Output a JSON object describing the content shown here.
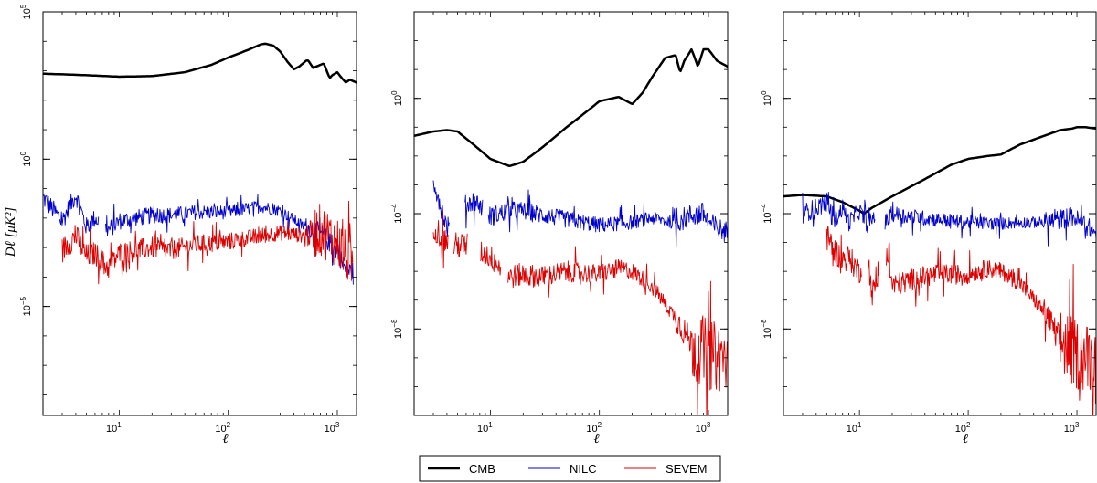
{
  "chart_data": [
    {
      "type": "line",
      "xscale": "log",
      "yscale": "log",
      "xlabel": "ℓ",
      "ylabel": "Dℓ [μK²]",
      "xlim": [
        2,
        1500
      ],
      "ylim_exp": [
        -8.7,
        5
      ],
      "yticks": [
        {
          "exp": 5,
          "label": "10",
          "sup": "5"
        },
        {
          "exp": 0,
          "label": "10",
          "sup": "0"
        },
        {
          "exp": -5,
          "label": "10",
          "sup": "−5"
        }
      ],
      "xticks": [
        {
          "exp": 1,
          "label": "10",
          "sup": "1"
        },
        {
          "exp": 2,
          "label": "10",
          "sup": "2"
        },
        {
          "exp": 3,
          "label": "10",
          "sup": "3"
        }
      ],
      "series": [
        {
          "name": "CMB",
          "color": "#000000",
          "width": 2.5,
          "noise": 0,
          "x": [
            2,
            3,
            5,
            10,
            20,
            40,
            70,
            100,
            150,
            200,
            220,
            260,
            300,
            350,
            400,
            450,
            520,
            540,
            600,
            700,
            750,
            800,
            850,
            900,
            1000,
            1100,
            1200,
            1300,
            1500
          ],
          "y": [
            2.9,
            2.88,
            2.85,
            2.8,
            2.82,
            2.95,
            3.2,
            3.45,
            3.7,
            3.9,
            3.92,
            3.85,
            3.65,
            3.3,
            3.05,
            3.15,
            3.35,
            3.35,
            3.1,
            3.2,
            3.25,
            3.0,
            2.75,
            2.85,
            2.95,
            2.75,
            2.6,
            2.7,
            2.6
          ]
        },
        {
          "name": "NILC",
          "color": "#0000cc",
          "width": 0.9,
          "noise": 0.35,
          "gaps": [
            [
              6.5,
              7.5
            ]
          ],
          "x": [
            2,
            3,
            4,
            5,
            6,
            8,
            10,
            20,
            30,
            50,
            100,
            200,
            300,
            500,
            700,
            1000,
            1200,
            1400
          ],
          "y": [
            -1.3,
            -2.1,
            -1.2,
            -2.3,
            -2.0,
            -2.4,
            -2.1,
            -1.9,
            -1.9,
            -1.8,
            -1.8,
            -1.6,
            -1.75,
            -2.3,
            -2.5,
            -3.1,
            -3.8,
            -3.8
          ]
        },
        {
          "name": "SEVEM",
          "color": "#dd0000",
          "width": 0.9,
          "noise": 0.45,
          "noiseBoost": [
            [
              600,
              1400,
              2.0
            ]
          ],
          "x": [
            3,
            4,
            5,
            6,
            8,
            10,
            20,
            30,
            50,
            100,
            200,
            300,
            500,
            700,
            1000,
            1200,
            1400
          ],
          "y": [
            -3.1,
            -2.6,
            -3.3,
            -3.2,
            -3.7,
            -3.2,
            -3.0,
            -3.1,
            -2.9,
            -2.8,
            -2.6,
            -2.5,
            -2.6,
            -2.4,
            -2.8,
            -3.3,
            -3.6
          ]
        }
      ]
    },
    {
      "type": "line",
      "xscale": "log",
      "yscale": "log",
      "xlabel": "ℓ",
      "ylabel": "",
      "xlim": [
        2,
        1500
      ],
      "ylim_exp": [
        -11,
        3
      ],
      "yticks": [
        {
          "exp": 0,
          "label": "10",
          "sup": "0"
        },
        {
          "exp": -4,
          "label": "10",
          "sup": "−4"
        },
        {
          "exp": -8,
          "label": "10",
          "sup": "−8"
        }
      ],
      "xticks": [
        {
          "exp": 1,
          "label": "10",
          "sup": "1"
        },
        {
          "exp": 2,
          "label": "10",
          "sup": "2"
        },
        {
          "exp": 3,
          "label": "10",
          "sup": "3"
        }
      ],
      "series": [
        {
          "name": "CMB",
          "color": "#000000",
          "width": 2.5,
          "noise": 0,
          "x": [
            2,
            3,
            4,
            5,
            7,
            10,
            15,
            20,
            30,
            50,
            80,
            100,
            150,
            200,
            250,
            300,
            400,
            500,
            550,
            600,
            700,
            800,
            900,
            1000,
            1200,
            1500
          ],
          "y": [
            -1.3,
            -1.15,
            -1.1,
            -1.15,
            -1.6,
            -2.1,
            -2.35,
            -2.2,
            -1.7,
            -1.0,
            -0.4,
            -0.1,
            0.05,
            -0.2,
            0.2,
            0.7,
            1.4,
            1.5,
            0.9,
            1.3,
            1.7,
            1.1,
            1.7,
            1.7,
            1.3,
            1.1
          ]
        },
        {
          "name": "NILC",
          "color": "#0000cc",
          "width": 0.9,
          "noise": 0.4,
          "gaps": [
            [
              4.2,
              5.8
            ],
            [
              8.5,
              9.5
            ]
          ],
          "x": [
            3,
            4,
            6,
            7,
            8,
            10,
            15,
            20,
            30,
            50,
            100,
            200,
            300,
            500,
            700,
            900,
            1000,
            1200,
            1500
          ],
          "y": [
            -2.8,
            -4.5,
            -3.7,
            -3.55,
            -3.7,
            -4.1,
            -3.9,
            -3.9,
            -4.05,
            -4.2,
            -4.4,
            -4.3,
            -4.15,
            -4.3,
            -4.05,
            -4.0,
            -4.3,
            -4.5,
            -4.65
          ]
        },
        {
          "name": "SEVEM",
          "color": "#dd0000",
          "width": 0.9,
          "noise": 0.5,
          "gaps": [
            [
              4.1,
              4.6
            ],
            [
              6.2,
              8.0
            ],
            [
              12.5,
              14.5
            ]
          ],
          "noiseBoost": [
            [
              700,
              1500,
              2.5
            ]
          ],
          "x": [
            3,
            4,
            4.8,
            6,
            8,
            10,
            12,
            15,
            20,
            30,
            50,
            100,
            150,
            200,
            300,
            500,
            700,
            1000,
            1300,
            1500
          ],
          "y": [
            -4.4,
            -5.0,
            -5.1,
            -5.1,
            -5.3,
            -5.5,
            -5.8,
            -6.2,
            -6.1,
            -6.2,
            -6.0,
            -6.1,
            -5.9,
            -6.0,
            -6.5,
            -7.6,
            -8.5,
            -8.9,
            -9.0,
            -9.1
          ]
        }
      ]
    },
    {
      "type": "line",
      "xscale": "log",
      "yscale": "log",
      "xlabel": "ℓ",
      "ylabel": "",
      "xlim": [
        2,
        1500
      ],
      "ylim_exp": [
        -11,
        3
      ],
      "yticks": [
        {
          "exp": 0,
          "label": "10",
          "sup": "0"
        },
        {
          "exp": -4,
          "label": "10",
          "sup": "−4"
        },
        {
          "exp": -8,
          "label": "10",
          "sup": "−8"
        }
      ],
      "xticks": [
        {
          "exp": 1,
          "label": "10",
          "sup": "1"
        },
        {
          "exp": 2,
          "label": "10",
          "sup": "2"
        },
        {
          "exp": 3,
          "label": "10",
          "sup": "3"
        }
      ],
      "series": [
        {
          "name": "CMB",
          "color": "#000000",
          "width": 2.5,
          "noise": 0,
          "x": [
            2,
            3,
            5,
            7,
            10,
            11,
            13,
            20,
            40,
            70,
            100,
            150,
            200,
            300,
            500,
            700,
            900,
            1000,
            1200,
            1500
          ],
          "y": [
            -3.4,
            -3.35,
            -3.4,
            -3.6,
            -3.9,
            -4.0,
            -3.8,
            -3.4,
            -2.8,
            -2.3,
            -2.1,
            -2.0,
            -1.95,
            -1.6,
            -1.3,
            -1.1,
            -1.05,
            -1.0,
            -1.0,
            -1.05
          ]
        },
        {
          "name": "NILC",
          "color": "#0000cc",
          "width": 0.9,
          "noise": 0.35,
          "gaps": [
            [
              14,
              17
            ]
          ],
          "x": [
            3,
            4,
            5,
            6,
            7,
            8,
            10,
            12,
            13.5,
            17.5,
            20,
            30,
            50,
            100,
            200,
            300,
            500,
            700,
            900,
            1100,
            1300,
            1500
          ],
          "y": [
            -4.0,
            -3.8,
            -3.6,
            -4.2,
            -3.8,
            -4.3,
            -3.9,
            -4.4,
            -4.1,
            -4.3,
            -4.0,
            -4.1,
            -4.2,
            -4.3,
            -4.35,
            -4.3,
            -4.3,
            -4.2,
            -4.1,
            -4.3,
            -4.5,
            -4.7
          ]
        },
        {
          "name": "SEVEM",
          "color": "#dd0000",
          "width": 0.9,
          "noise": 0.5,
          "gaps": [
            [
              10.5,
              12
            ],
            [
              15,
              17.5
            ]
          ],
          "noiseBoost": [
            [
              700,
              1500,
              2.5
            ]
          ],
          "x": [
            5,
            6,
            7,
            8,
            9,
            10,
            12,
            13,
            14,
            18,
            20,
            30,
            50,
            100,
            150,
            200,
            300,
            500,
            700,
            1000,
            1300,
            1500
          ],
          "y": [
            -4.8,
            -5.3,
            -5.6,
            -5.5,
            -5.8,
            -6.0,
            -5.5,
            -6.8,
            -6.5,
            -5.3,
            -6.5,
            -6.3,
            -6.1,
            -6.1,
            -5.9,
            -6.0,
            -6.4,
            -7.4,
            -8.4,
            -8.9,
            -9.0,
            -9.1
          ]
        }
      ]
    }
  ],
  "legend": {
    "items": [
      {
        "label": "CMB",
        "color": "#000000",
        "width": 2.5
      },
      {
        "label": "NILC",
        "color": "#0000cc",
        "width": 0.9
      },
      {
        "label": "SEVEM",
        "color": "#dd0000",
        "width": 0.9
      }
    ]
  }
}
